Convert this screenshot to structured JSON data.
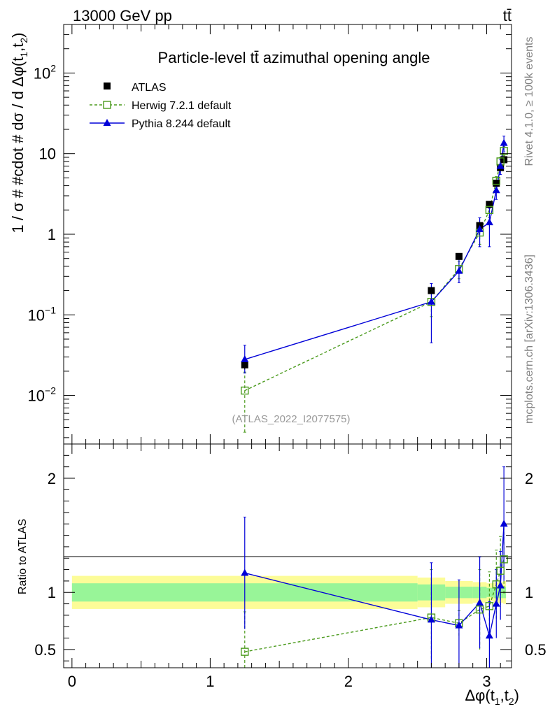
{
  "header": {
    "energy": "13000 GeV pp",
    "process": "tt̄"
  },
  "side_labels": {
    "rivet": "Rivet 4.1.0, ≥ 100k events",
    "mcplots": "mcplots.cern.ch [arXiv:1306.3436]"
  },
  "colors": {
    "atlas": "#000000",
    "herwig": "#4a9a1c",
    "pythia": "#0000d8",
    "band_inner": "#98f598",
    "band_outer": "#fcfc98"
  },
  "chart_data": [
    {
      "type": "line",
      "title": "Particle-level tt̄ azimuthal opening angle",
      "ylabel": "1 / σ # #cdot # dσ / d Δφ(t1,t2)",
      "xlabel": "",
      "yscale": "log",
      "xlim": [
        -0.06,
        3.18
      ],
      "ylim": [
        0.0025,
        400
      ],
      "x_ticks": [
        0,
        1,
        2,
        3
      ],
      "y_ticks": [
        {
          "value": 0.01,
          "base": "10",
          "exp": "−2"
        },
        {
          "value": 0.1,
          "base": "10",
          "exp": "−1"
        },
        {
          "value": 1,
          "base": "1",
          "exp": ""
        },
        {
          "value": 10,
          "base": "10",
          "exp": ""
        },
        {
          "value": 100,
          "base": "10",
          "exp": "2"
        }
      ],
      "watermark": "(ATLAS_2022_I2077575)",
      "legend": {
        "position": "top-left",
        "entries": [
          "ATLAS",
          "Herwig 7.2.1 default",
          "Pythia 8.244 default"
        ]
      },
      "series": [
        {
          "name": "ATLAS",
          "x": [
            1.25,
            2.6,
            2.8,
            2.95,
            3.02,
            3.07,
            3.1,
            3.125
          ],
          "y": [
            0.024,
            0.2,
            0.53,
            1.28,
            2.35,
            4.3,
            6.7,
            8.4
          ],
          "err": [
            0.003,
            0.02,
            0.04,
            0.09,
            0.15,
            0.3,
            0.5,
            0.6
          ]
        },
        {
          "name": "Herwig 7.2.1 default",
          "x": [
            1.25,
            2.6,
            2.8,
            2.95,
            3.02,
            3.07,
            3.1,
            3.125
          ],
          "y": [
            0.0115,
            0.145,
            0.37,
            1.05,
            2.0,
            4.6,
            8.0,
            10.8
          ],
          "err_lo": [
            0.008,
            0.05,
            0.09,
            0.3,
            0.4,
            0.6,
            1.0,
            1.4
          ],
          "err_hi": [
            0.008,
            0.05,
            0.09,
            0.3,
            0.4,
            0.6,
            1.0,
            1.4
          ]
        },
        {
          "name": "Pythia 8.244 default",
          "x": [
            1.25,
            2.6,
            2.8,
            2.95,
            3.02,
            3.07,
            3.1,
            3.125
          ],
          "y": [
            0.028,
            0.145,
            0.35,
            1.15,
            1.4,
            3.5,
            7.0,
            13.5
          ],
          "err_lo": [
            0.009,
            0.1,
            0.1,
            0.45,
            0.7,
            0.8,
            1.5,
            3.0
          ],
          "err_hi": [
            0.014,
            0.1,
            0.15,
            0.45,
            0.7,
            0.8,
            1.5,
            3.0
          ]
        }
      ]
    },
    {
      "type": "line",
      "title": "",
      "ylabel": "Ratio to ATLAS",
      "xlabel": "Δφ(t1,t2)",
      "yscale": "linear",
      "xlim": [
        -0.06,
        3.18
      ],
      "ylim": [
        0.34,
        2.3
      ],
      "x_ticks": [
        0,
        1,
        2,
        3
      ],
      "y_ticks": [
        0.5,
        1,
        2
      ],
      "bands": [
        {
          "x_edges": [
            0.0,
            2.5,
            2.7,
            2.9,
            3.0,
            3.05,
            3.08,
            3.12,
            3.14
          ],
          "inner": [
            0.08,
            0.07,
            0.05,
            0.05,
            0.04,
            0.05,
            0.05,
            0.05
          ],
          "outer": [
            0.145,
            0.13,
            0.1,
            0.09,
            0.08,
            0.09,
            0.09,
            0.1
          ]
        }
      ],
      "series": [
        {
          "name": "Herwig 7.2.1 default",
          "x": [
            1.25,
            2.6,
            2.8,
            2.95,
            3.02,
            3.07,
            3.1,
            3.125
          ],
          "y": [
            0.48,
            0.78,
            0.73,
            0.85,
            0.88,
            1.07,
            1.19,
            1.29
          ],
          "err_lo": [
            0.35,
            0.36,
            0.11,
            0.35,
            0.3,
            0.3,
            0.3,
            0.3
          ],
          "err_hi": [
            0.35,
            0.42,
            0.11,
            0.35,
            0.3,
            0.3,
            0.3,
            0.3
          ]
        },
        {
          "name": "Pythia 8.244 default",
          "x": [
            1.25,
            2.6,
            2.8,
            2.95,
            3.02,
            3.07,
            3.1,
            3.125
          ],
          "y": [
            1.17,
            0.76,
            0.71,
            0.91,
            0.62,
            0.9,
            1.06,
            1.6
          ],
          "err_lo": [
            0.49,
            0.5,
            0.4,
            0.4,
            0.3,
            0.3,
            0.3,
            0.5
          ],
          "err_hi": [
            0.49,
            0.5,
            0.4,
            0.4,
            0.3,
            0.3,
            0.3,
            0.5
          ]
        }
      ]
    }
  ]
}
